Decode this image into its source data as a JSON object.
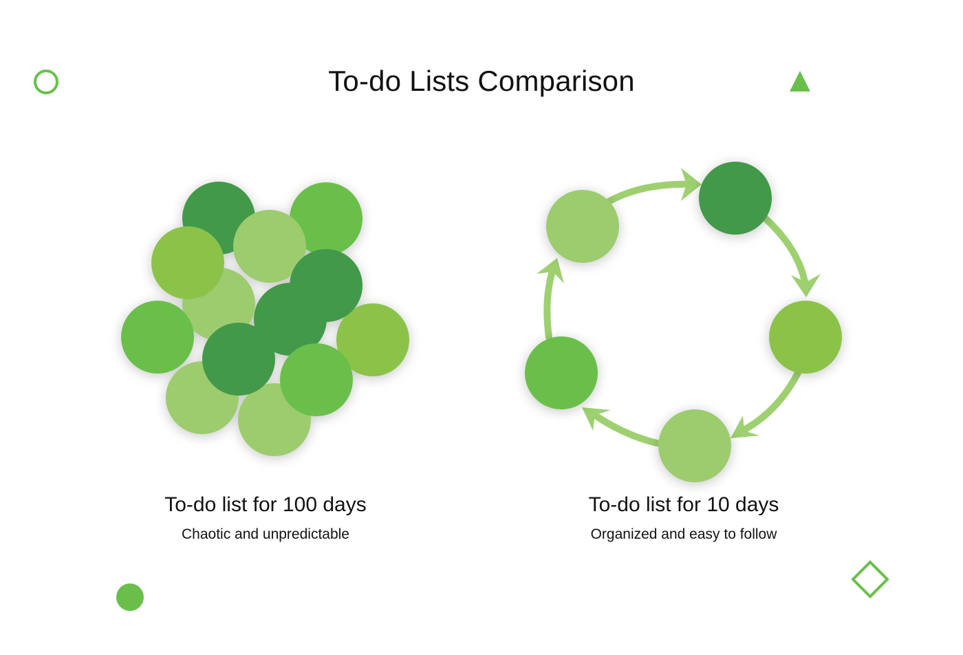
{
  "title": "To-do Lists Comparison",
  "colors": {
    "dark_green": "#43994A",
    "mid_green": "#6ABF4B",
    "light_green": "#9CCC6E",
    "lime_green": "#8BC34A",
    "arrow_green": "#9ED070",
    "accent": "#6ABF4B"
  },
  "left_panel": {
    "heading": "To-do list for 100 days",
    "subtitle": "Chaotic and unpredictable"
  },
  "right_panel": {
    "heading": "To-do list for 10 days",
    "subtitle": "Organized and easy to follow"
  },
  "decorations": [
    "ring-icon",
    "triangle-icon",
    "dot-icon",
    "diamond-icon"
  ]
}
